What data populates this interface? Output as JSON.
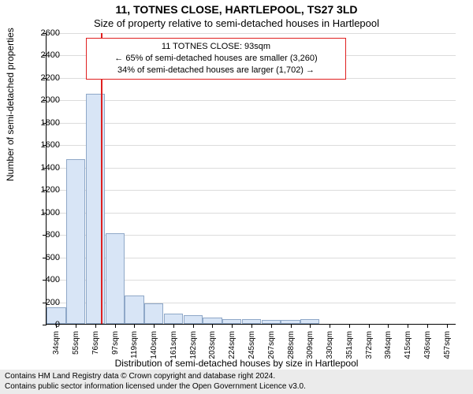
{
  "titles": {
    "line1": "11, TOTNES CLOSE, HARTLEPOOL, TS27 3LD",
    "line2": "Size of property relative to semi-detached houses in Hartlepool"
  },
  "axes": {
    "ylabel": "Number of semi-detached properties",
    "xlabel": "Distribution of semi-detached houses by size in Hartlepool",
    "ylim": [
      0,
      2600
    ],
    "ytick_step": 200,
    "label_fontsize": 12,
    "tick_fontsize": 11,
    "grid_color": "#dcdcdc"
  },
  "chart": {
    "type": "histogram",
    "bar_color": "#d8e5f6",
    "bar_border": "#8fa8c8",
    "background_color": "#ffffff",
    "categories": [
      "34sqm",
      "55sqm",
      "76sqm",
      "97sqm",
      "119sqm",
      "140sqm",
      "161sqm",
      "182sqm",
      "203sqm",
      "224sqm",
      "245sqm",
      "267sqm",
      "288sqm",
      "309sqm",
      "330sqm",
      "351sqm",
      "372sqm",
      "394sqm",
      "415sqm",
      "436sqm",
      "457sqm"
    ],
    "values": [
      145,
      1470,
      2050,
      810,
      250,
      180,
      90,
      75,
      55,
      45,
      40,
      35,
      35,
      40,
      0,
      0,
      0,
      0,
      0,
      0,
      0
    ]
  },
  "marker": {
    "color": "#e02020",
    "at_category_index": 3,
    "at_value_sqm": 93
  },
  "annotation": {
    "border_color": "#e02020",
    "line1": "11 TOTNES CLOSE: 93sqm",
    "line2": "← 65% of semi-detached houses are smaller (3,260)",
    "line3": "34% of semi-detached houses are larger (1,702) →"
  },
  "footer": {
    "line1": "Contains HM Land Registry data © Crown copyright and database right 2024.",
    "line2": "Contains public sector information licensed under the Open Government Licence v3.0."
  }
}
